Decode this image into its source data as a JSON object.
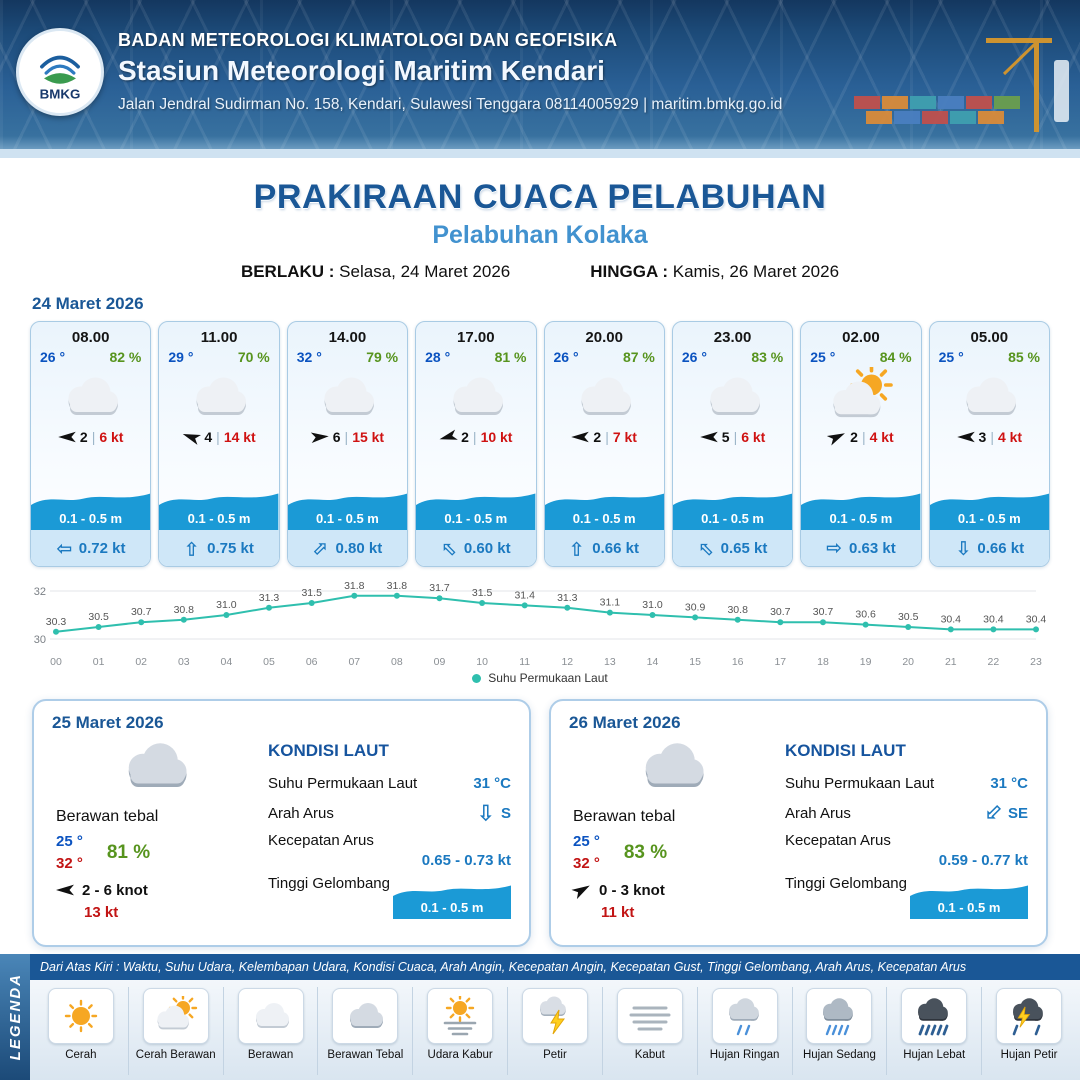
{
  "header": {
    "logo": "BMKG",
    "agency": "BADAN METEOROLOGI KLIMATOLOGI DAN GEOFISIKA",
    "station": "Stasiun Meteorologi Maritim Kendari",
    "address": "Jalan Jendral Sudirman No. 158, Kendari, Sulawesi Tenggara  08114005929 | maritim.bmkg.go.id"
  },
  "title": {
    "main": "PRAKIRAAN CUACA PELABUHAN",
    "subtitle": "Pelabuhan Kolaka",
    "berlaku_label": "BERLAKU :",
    "berlaku_value": "Selasa, 24 Maret 2026",
    "hingga_label": "HINGGA :",
    "hingga_value": "Kamis, 26 Maret 2026"
  },
  "forecast": {
    "date": "24 Maret 2026",
    "cards": [
      {
        "time": "08.00",
        "temp": "26 °",
        "hum": "82 %",
        "icon": "cloud",
        "wind_rot": 180,
        "wind_val": "2",
        "wind_kt": "6 kt",
        "wave": "0.1 - 0.5 m",
        "cur_rot": 180,
        "cur": "0.72 kt"
      },
      {
        "time": "11.00",
        "temp": "29 °",
        "hum": "70 %",
        "icon": "cloud",
        "wind_rot": 200,
        "wind_val": "4",
        "wind_kt": "14 kt",
        "wave": "0.1 - 0.5 m",
        "cur_rot": 270,
        "cur": "0.75 kt"
      },
      {
        "time": "14.00",
        "temp": "32 °",
        "hum": "79 %",
        "icon": "cloud",
        "wind_rot": 355,
        "wind_val": "6",
        "wind_kt": "15 kt",
        "wave": "0.1 - 0.5 m",
        "cur_rot": 315,
        "cur": "0.80 kt"
      },
      {
        "time": "17.00",
        "temp": "28 °",
        "hum": "81 %",
        "icon": "cloud",
        "wind_rot": 165,
        "wind_val": "2",
        "wind_kt": "10 kt",
        "wave": "0.1 - 0.5 m",
        "cur_rot": 225,
        "cur": "0.60 kt"
      },
      {
        "time": "20.00",
        "temp": "26 °",
        "hum": "87 %",
        "icon": "cloud",
        "wind_rot": 180,
        "wind_val": "2",
        "wind_kt": "7 kt",
        "wave": "0.1 - 0.5 m",
        "cur_rot": 270,
        "cur": "0.66 kt"
      },
      {
        "time": "23.00",
        "temp": "26 °",
        "hum": "83 %",
        "icon": "cloud",
        "wind_rot": 180,
        "wind_val": "5",
        "wind_kt": "6 kt",
        "wave": "0.1 - 0.5 m",
        "cur_rot": 225,
        "cur": "0.65 kt"
      },
      {
        "time": "02.00",
        "temp": "25 °",
        "hum": "84 %",
        "icon": "sun-cloud",
        "wind_rot": 335,
        "wind_val": "2",
        "wind_kt": "4 kt",
        "wave": "0.1 - 0.5 m",
        "cur_rot": 0,
        "cur": "0.63 kt"
      },
      {
        "time": "05.00",
        "temp": "25 °",
        "hum": "85 %",
        "icon": "cloud",
        "wind_rot": 180,
        "wind_val": "3",
        "wind_kt": "4 kt",
        "wave": "0.1 - 0.5 m",
        "cur_rot": 90,
        "cur": "0.66 kt"
      }
    ]
  },
  "chart_data": {
    "type": "line",
    "x": [
      "00",
      "01",
      "02",
      "03",
      "04",
      "05",
      "06",
      "07",
      "08",
      "09",
      "10",
      "11",
      "12",
      "13",
      "14",
      "15",
      "16",
      "17",
      "18",
      "19",
      "20",
      "21",
      "22",
      "23"
    ],
    "values": [
      30.3,
      30.5,
      30.7,
      30.8,
      31.0,
      31.3,
      31.5,
      31.8,
      31.8,
      31.7,
      31.5,
      31.4,
      31.3,
      31.1,
      31.0,
      30.9,
      30.8,
      30.7,
      30.7,
      30.6,
      30.5,
      30.4,
      30.4,
      30.4
    ],
    "series_name": "Suhu Permukaan Laut",
    "title": "",
    "xlabel": "",
    "ylabel": "",
    "ylim": [
      30,
      32
    ],
    "yticks": [
      30,
      32
    ],
    "line_color": "#2fbfae",
    "legend_position": "bottom-center",
    "grid": true
  },
  "daily": {
    "labels": {
      "sea_title": "KONDISI LAUT",
      "sst": "Suhu Permukaan Laut",
      "arah": "Arah Arus",
      "kec": "Kecepatan Arus",
      "wave": "Tinggi Gelombang"
    },
    "cards": [
      {
        "date": "25 Maret 2026",
        "icon": "cloud-thick",
        "condition": "Berawan tebal",
        "temp_min": "25 °",
        "temp_max": "32 °",
        "hum": "81 %",
        "wind_rot": 180,
        "wind_range": "2 - 6 knot",
        "gust": "13 kt",
        "sst": "31 °C",
        "arah_rot": 90,
        "arah": "S",
        "kec": "0.65 - 0.73 kt",
        "wave": "0.1 - 0.5 m"
      },
      {
        "date": "26 Maret 2026",
        "icon": "cloud-thick",
        "condition": "Berawan tebal",
        "temp_min": "25 °",
        "temp_max": "32 °",
        "hum": "83 %",
        "wind_rot": 330,
        "wind_range": "0 - 3 knot",
        "gust": "11 kt",
        "sst": "31 °C",
        "arah_rot": 135,
        "arah": "SE",
        "kec": "0.59 - 0.77 kt",
        "wave": "0.1 - 0.5 m"
      }
    ]
  },
  "legend": {
    "title": "LEGENDA",
    "description": "Dari Atas Kiri : Waktu, Suhu Udara, Kelembapan Udara, Kondisi Cuaca, Arah Angin, Kecepatan Angin, Kecepatan Gust, Tinggi Gelombang, Arah Arus, Kecepatan Arus",
    "items": [
      {
        "icon": "sun",
        "label": "Cerah"
      },
      {
        "icon": "sun-cloud",
        "label": "Cerah Berawan"
      },
      {
        "icon": "cloud",
        "label": "Berawan"
      },
      {
        "icon": "cloud-thick",
        "label": "Berawan Tebal"
      },
      {
        "icon": "haze",
        "label": "Udara Kabur"
      },
      {
        "icon": "thunder",
        "label": "Petir"
      },
      {
        "icon": "fog",
        "label": "Kabut"
      },
      {
        "icon": "rain-light",
        "label": "Hujan Ringan"
      },
      {
        "icon": "rain-medium",
        "label": "Hujan Sedang"
      },
      {
        "icon": "rain-heavy",
        "label": "Hujan Lebat"
      },
      {
        "icon": "rain-thunder",
        "label": "Hujan Petir"
      }
    ]
  },
  "colors": {
    "accent_blue": "#1a5796",
    "light_blue": "#4292cf",
    "temp_blue": "#0b53c0",
    "humidity_green": "#57941e",
    "gust_red": "#cf1212",
    "wave_blue": "#1b9ad6",
    "current_blue": "#1b79c0",
    "chart_teal": "#2fbfae"
  }
}
